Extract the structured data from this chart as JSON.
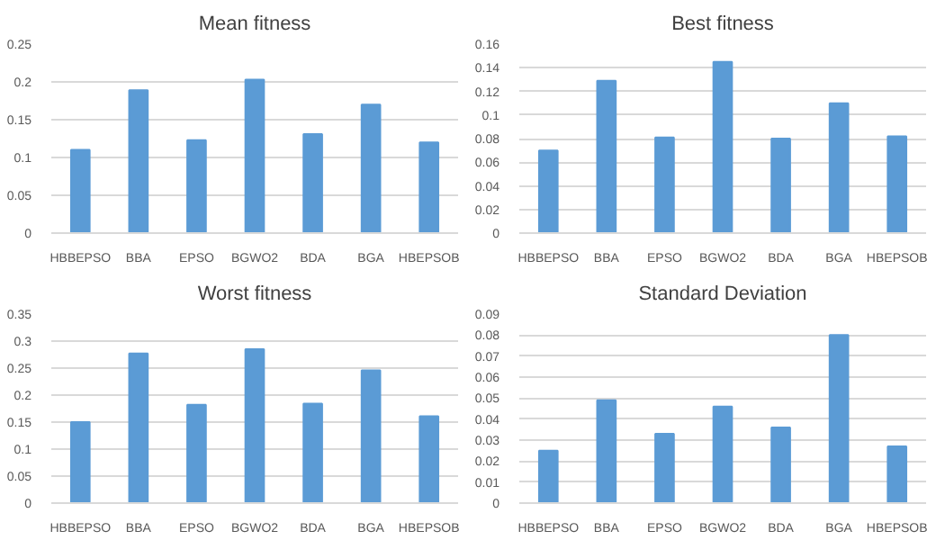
{
  "chart_data": [
    {
      "type": "bar",
      "title": "Mean fitness",
      "categories": [
        "HBBEPSO",
        "BBA",
        "EPSO",
        "BGWO2",
        "BDA",
        "BGA",
        "HBEPSOB"
      ],
      "values": [
        0.11,
        0.189,
        0.123,
        0.203,
        0.131,
        0.17,
        0.12
      ],
      "color": "#5b9bd5",
      "ylim": [
        0,
        0.25
      ],
      "yticks": [
        0,
        0.05,
        0.1,
        0.15,
        0.2,
        0.25
      ],
      "grid": "y"
    },
    {
      "type": "bar",
      "title": "Best fitness",
      "categories": [
        "HBBEPSO",
        "BBA",
        "EPSO",
        "BGWO2",
        "BDA",
        "BGA",
        "HBEPSOB"
      ],
      "values": [
        0.07,
        0.129,
        0.081,
        0.145,
        0.08,
        0.11,
        0.082
      ],
      "color": "#5b9bd5",
      "ylim": [
        0,
        0.16
      ],
      "yticks": [
        0,
        0.02,
        0.04,
        0.06,
        0.08,
        0.1,
        0.12,
        0.14,
        0.16
      ],
      "grid": "y"
    },
    {
      "type": "bar",
      "title": "Worst fitness",
      "categories": [
        "HBBEPSO",
        "BBA",
        "EPSO",
        "BGWO2",
        "BDA",
        "BGA",
        "HBEPSOB"
      ],
      "values": [
        0.15,
        0.277,
        0.182,
        0.285,
        0.184,
        0.246,
        0.161
      ],
      "color": "#5b9bd5",
      "ylim": [
        0,
        0.35
      ],
      "yticks": [
        0,
        0.05,
        0.1,
        0.15,
        0.2,
        0.25,
        0.3,
        0.35
      ],
      "grid": "y"
    },
    {
      "type": "bar",
      "title": "Standard Deviation",
      "categories": [
        "HBBEPSO",
        "BBA",
        "EPSO",
        "BGWO2",
        "BDA",
        "BGA",
        "HBEPSOB"
      ],
      "values": [
        0.025,
        0.049,
        0.033,
        0.046,
        0.036,
        0.08,
        0.027
      ],
      "color": "#5b9bd5",
      "ylim": [
        0,
        0.09
      ],
      "yticks": [
        0,
        0.01,
        0.02,
        0.03,
        0.04,
        0.05,
        0.06,
        0.07,
        0.08,
        0.09
      ],
      "grid": "y"
    }
  ]
}
